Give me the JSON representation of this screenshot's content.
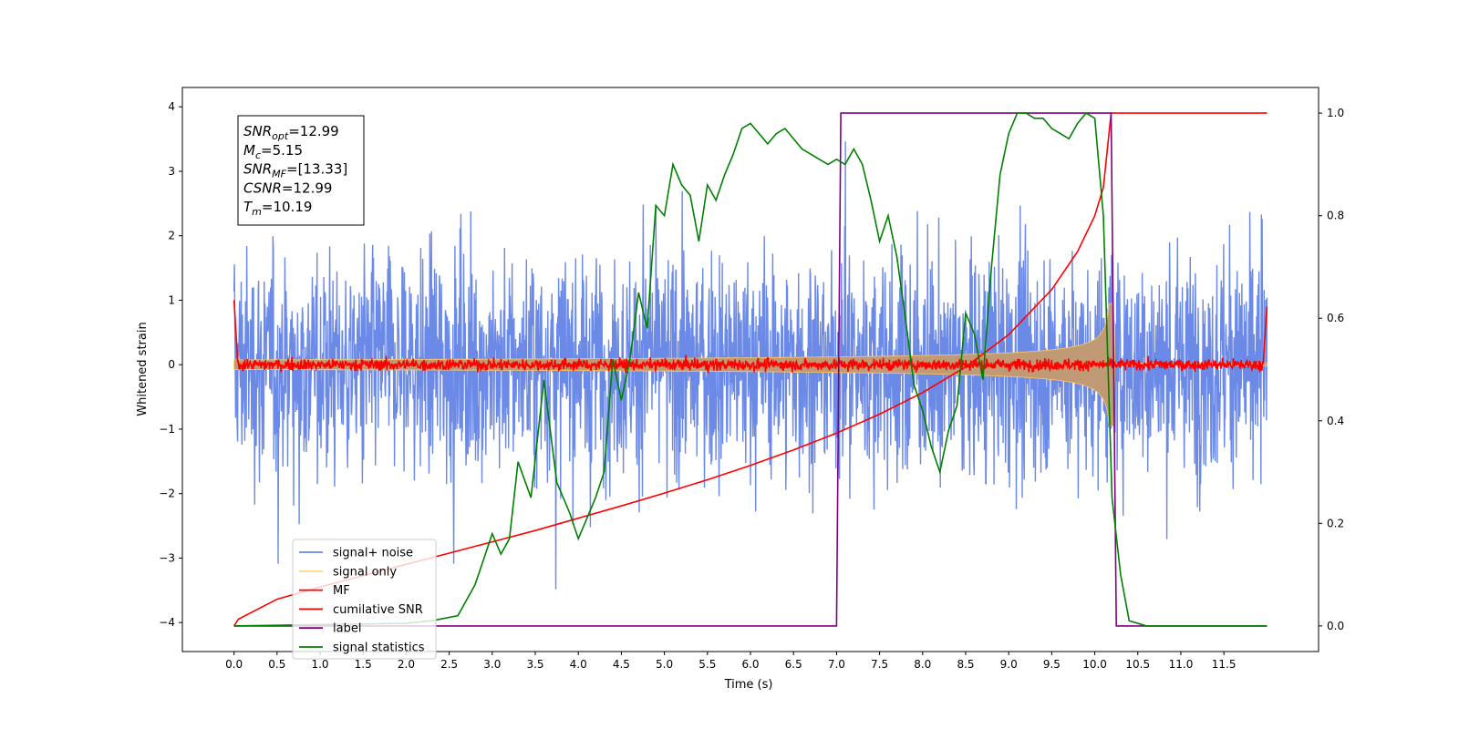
{
  "chart_data": {
    "type": "line",
    "xlabel": "Time (s)",
    "ylabel": "Whitened strain",
    "xlim": [
      -0.6,
      12.6
    ],
    "ylim": [
      -4.45,
      4.3
    ],
    "y2lim": [
      -0.05,
      1.05
    ],
    "x_ticks": [
      0.0,
      0.5,
      1.0,
      1.5,
      2.0,
      2.5,
      3.0,
      3.5,
      4.0,
      4.5,
      5.0,
      5.5,
      6.0,
      6.5,
      7.0,
      7.5,
      8.0,
      8.5,
      9.0,
      9.5,
      10.0,
      10.5,
      11.0,
      11.5
    ],
    "x_tick_labels": [
      "0.0",
      "0.5",
      "1.0",
      "1.5",
      "2.0",
      "2.5",
      "3.0",
      "3.5",
      "4.0",
      "4.5",
      "5.0",
      "5.5",
      "6.0",
      "6.5",
      "7.0",
      "7.5",
      "8.0",
      "8.5",
      "9.0",
      "9.5",
      "10.0",
      "10.5",
      "11.0",
      "11.5"
    ],
    "y_ticks": [
      -4,
      -3,
      -2,
      -1,
      0,
      1,
      2,
      3,
      4
    ],
    "y_tick_labels": [
      "−4",
      "−3",
      "−2",
      "−1",
      "0",
      "1",
      "2",
      "3",
      "4"
    ],
    "y2_ticks": [
      0.0,
      0.2,
      0.4,
      0.6,
      0.8,
      1.0
    ],
    "y2_tick_labels": [
      "0.0",
      "0.2",
      "0.4",
      "0.6",
      "0.8",
      "1.0"
    ],
    "grid": false,
    "legend_position": "lower-left",
    "series": [
      {
        "name": "signal+ noise",
        "color": "#6b89e6",
        "axis": "left",
        "style": "dense noise, amplitude approx ±3.5 around 0",
        "t_range": [
          0.0,
          12.0
        ]
      },
      {
        "name": "signal only",
        "color": "#ffc866",
        "axis": "left",
        "style": "chirp envelope growing to approx ±0.7 near t=10.19"
      },
      {
        "name": "MF",
        "color": "#ff0000",
        "axis": "left",
        "style": "matched-filter output near 0 with spikes at edges (~1.0 at t=0, ~0.9 at t=12)"
      },
      {
        "name": "cumilative SNR",
        "color": "#ff0000",
        "axis": "right",
        "x": [
          0.0,
          0.05,
          0.5,
          1.0,
          1.5,
          2.0,
          2.5,
          3.0,
          3.5,
          4.0,
          4.5,
          5.0,
          5.5,
          6.0,
          6.5,
          7.0,
          7.5,
          8.0,
          8.5,
          9.0,
          9.5,
          9.8,
          10.0,
          10.1,
          10.19,
          12.0
        ],
        "y": [
          0.0,
          0.013,
          0.052,
          0.076,
          0.098,
          0.12,
          0.142,
          0.164,
          0.186,
          0.21,
          0.234,
          0.259,
          0.285,
          0.313,
          0.343,
          0.376,
          0.413,
          0.455,
          0.505,
          0.568,
          0.656,
          0.73,
          0.8,
          0.855,
          1.0,
          1.0
        ]
      },
      {
        "name": "label",
        "color": "#800080",
        "axis": "right",
        "x": [
          0.0,
          7.0,
          7.05,
          10.19,
          10.25,
          12.0
        ],
        "y": [
          0.0,
          0.0,
          1.0,
          1.0,
          0.0,
          0.0
        ]
      },
      {
        "name": "signal statistics",
        "color": "#008000",
        "axis": "right",
        "x": [
          0.0,
          2.0,
          2.3,
          2.6,
          2.8,
          2.9,
          3.0,
          3.1,
          3.2,
          3.3,
          3.45,
          3.6,
          3.75,
          3.9,
          4.0,
          4.1,
          4.2,
          4.3,
          4.4,
          4.5,
          4.6,
          4.7,
          4.8,
          4.9,
          5.0,
          5.1,
          5.2,
          5.3,
          5.4,
          5.5,
          5.6,
          5.7,
          5.8,
          5.9,
          6.0,
          6.1,
          6.2,
          6.3,
          6.4,
          6.5,
          6.6,
          6.7,
          6.8,
          6.9,
          7.0,
          7.1,
          7.2,
          7.3,
          7.4,
          7.5,
          7.6,
          7.7,
          7.8,
          7.9,
          8.0,
          8.1,
          8.2,
          8.3,
          8.4,
          8.5,
          8.6,
          8.7,
          8.8,
          8.9,
          9.0,
          9.1,
          9.2,
          9.3,
          9.4,
          9.5,
          9.6,
          9.7,
          9.8,
          9.9,
          10.0,
          10.1,
          10.2,
          10.3,
          10.4,
          10.6,
          12.0
        ],
        "y": [
          0.0,
          0.005,
          0.01,
          0.02,
          0.08,
          0.13,
          0.18,
          0.14,
          0.17,
          0.32,
          0.25,
          0.48,
          0.28,
          0.22,
          0.17,
          0.21,
          0.25,
          0.3,
          0.52,
          0.44,
          0.52,
          0.65,
          0.58,
          0.82,
          0.8,
          0.9,
          0.86,
          0.84,
          0.75,
          0.86,
          0.83,
          0.88,
          0.92,
          0.97,
          0.98,
          0.96,
          0.94,
          0.96,
          0.97,
          0.95,
          0.93,
          0.92,
          0.91,
          0.9,
          0.91,
          0.9,
          0.93,
          0.9,
          0.83,
          0.75,
          0.8,
          0.72,
          0.6,
          0.47,
          0.42,
          0.35,
          0.3,
          0.38,
          0.43,
          0.61,
          0.57,
          0.48,
          0.7,
          0.88,
          0.96,
          1.0,
          1.0,
          0.99,
          0.99,
          0.97,
          0.96,
          0.95,
          0.98,
          1.0,
          0.99,
          0.8,
          0.25,
          0.1,
          0.01,
          0.0,
          0.0
        ]
      }
    ],
    "annotations": [
      {
        "base": "SNR",
        "sub": "opt",
        "value": "=12.99"
      },
      {
        "base": "M",
        "sub": "c",
        "value": "=5.15"
      },
      {
        "base": "SNR",
        "sub": "MF",
        "value": "=[13.33]"
      },
      {
        "base": "CSNR",
        "sub": "",
        "value": "=12.99"
      },
      {
        "base": "T",
        "sub": "m",
        "value": "=10.19"
      }
    ],
    "merger_time": 10.19
  }
}
